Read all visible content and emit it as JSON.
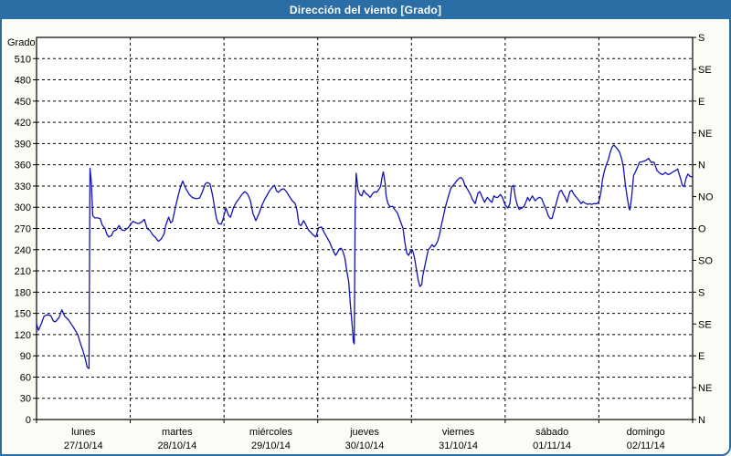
{
  "window": {
    "title": "Dirección del viento [Grado]"
  },
  "colors": {
    "accent": "#2b6ea6",
    "line": "#1212b2",
    "grid": "#000000",
    "plot_background": "#ffffff",
    "page_background": "#fcfcf6",
    "title_text": "#ffffff"
  },
  "chart_data": {
    "type": "line",
    "title": "Dirección del viento [Grado]",
    "ylabel": "Grado",
    "ylim": [
      0,
      540
    ],
    "grid": "dashed",
    "legend": "none",
    "y_left_tick_labels": [
      0,
      30,
      60,
      90,
      120,
      150,
      180,
      210,
      240,
      270,
      300,
      330,
      360,
      390,
      420,
      450,
      480,
      510
    ],
    "y_right_tick_labels": [
      {
        "deg": 0,
        "label": "N"
      },
      {
        "deg": 45,
        "label": "NE"
      },
      {
        "deg": 90,
        "label": "E"
      },
      {
        "deg": 135,
        "label": "SE"
      },
      {
        "deg": 180,
        "label": "S"
      },
      {
        "deg": 225,
        "label": "SO"
      },
      {
        "deg": 270,
        "label": "O"
      },
      {
        "deg": 315,
        "label": "NO"
      },
      {
        "deg": 360,
        "label": "N"
      },
      {
        "deg": 405,
        "label": "NE"
      },
      {
        "deg": 450,
        "label": "E"
      },
      {
        "deg": 495,
        "label": "SE"
      },
      {
        "deg": 540,
        "label": "S"
      }
    ],
    "x_days": [
      {
        "name": "lunes",
        "date": "27/10/14"
      },
      {
        "name": "martes",
        "date": "28/10/14"
      },
      {
        "name": "miércoles",
        "date": "29/10/14"
      },
      {
        "name": "jueves",
        "date": "30/10/14"
      },
      {
        "name": "viernes",
        "date": "31/10/14"
      },
      {
        "name": "sábado",
        "date": "01/11/14"
      },
      {
        "name": "domingo",
        "date": "02/11/14"
      }
    ],
    "series": [
      {
        "name": "Dirección del viento",
        "color": "#1212b2",
        "x_unit": "days_from_start",
        "y_unit": "degrees",
        "points": [
          [
            0,
            135
          ],
          [
            0.02,
            126
          ],
          [
            0.05,
            135
          ],
          [
            0.08,
            146
          ],
          [
            0.11,
            148
          ],
          [
            0.15,
            147
          ],
          [
            0.18,
            139
          ],
          [
            0.2,
            138
          ],
          [
            0.24,
            144
          ],
          [
            0.27,
            155
          ],
          [
            0.3,
            146
          ],
          [
            0.34,
            141
          ],
          [
            0.37,
            135
          ],
          [
            0.4,
            129
          ],
          [
            0.44,
            120
          ],
          [
            0.47,
            107
          ],
          [
            0.5,
            95
          ],
          [
            0.52,
            86
          ],
          [
            0.54,
            74
          ],
          [
            0.56,
            72
          ],
          [
            0.57,
            355
          ],
          [
            0.585,
            335
          ],
          [
            0.6,
            288
          ],
          [
            0.62,
            285
          ],
          [
            0.65,
            285
          ],
          [
            0.68,
            284
          ],
          [
            0.7,
            275
          ],
          [
            0.73,
            270
          ],
          [
            0.75,
            262
          ],
          [
            0.77,
            258
          ],
          [
            0.8,
            260
          ],
          [
            0.82,
            266
          ],
          [
            0.85,
            268
          ],
          [
            0.88,
            274
          ],
          [
            0.91,
            268
          ],
          [
            0.94,
            267
          ],
          [
            0.965,
            270
          ],
          [
            0.985,
            272
          ],
          [
            1.01,
            277
          ],
          [
            1.03,
            280
          ],
          [
            1.06,
            278
          ],
          [
            1.09,
            277
          ],
          [
            1.12,
            279
          ],
          [
            1.15,
            283
          ],
          [
            1.18,
            270
          ],
          [
            1.21,
            267
          ],
          [
            1.24,
            261
          ],
          [
            1.27,
            257
          ],
          [
            1.3,
            252
          ],
          [
            1.33,
            255
          ],
          [
            1.36,
            262
          ],
          [
            1.38,
            275
          ],
          [
            1.41,
            286
          ],
          [
            1.43,
            278
          ],
          [
            1.45,
            280
          ],
          [
            1.48,
            299
          ],
          [
            1.51,
            316
          ],
          [
            1.54,
            331
          ],
          [
            1.56,
            337
          ],
          [
            1.59,
            327
          ],
          [
            1.63,
            318
          ],
          [
            1.66,
            314
          ],
          [
            1.7,
            312
          ],
          [
            1.74,
            313
          ],
          [
            1.77,
            322
          ],
          [
            1.8,
            333
          ],
          [
            1.82,
            335
          ],
          [
            1.85,
            333
          ],
          [
            1.88,
            316
          ],
          [
            1.9,
            299
          ],
          [
            1.92,
            284
          ],
          [
            1.94,
            277
          ],
          [
            1.97,
            276
          ],
          [
            1.99,
            283
          ],
          [
            2.02,
            299
          ],
          [
            2.05,
            288
          ],
          [
            2.07,
            286
          ],
          [
            2.1,
            299
          ],
          [
            2.13,
            307
          ],
          [
            2.16,
            312
          ],
          [
            2.19,
            318
          ],
          [
            2.22,
            322
          ],
          [
            2.25,
            319
          ],
          [
            2.28,
            310
          ],
          [
            2.31,
            291
          ],
          [
            2.34,
            281
          ],
          [
            2.37,
            290
          ],
          [
            2.4,
            301
          ],
          [
            2.43,
            310
          ],
          [
            2.46,
            317
          ],
          [
            2.49,
            324
          ],
          [
            2.52,
            329
          ],
          [
            2.54,
            331
          ],
          [
            2.56,
            323
          ],
          [
            2.58,
            321
          ],
          [
            2.61,
            325
          ],
          [
            2.64,
            326
          ],
          [
            2.67,
            321
          ],
          [
            2.7,
            315
          ],
          [
            2.73,
            309
          ],
          [
            2.76,
            305
          ],
          [
            2.78,
            295
          ],
          [
            2.8,
            276
          ],
          [
            2.82,
            274
          ],
          [
            2.85,
            281
          ],
          [
            2.87,
            276
          ],
          [
            2.9,
            268
          ],
          [
            2.93,
            264
          ],
          [
            2.95,
            261
          ],
          [
            2.98,
            258
          ],
          [
            3.01,
            271
          ],
          [
            3.04,
            272
          ],
          [
            3.07,
            264
          ],
          [
            3.1,
            257
          ],
          [
            3.13,
            250
          ],
          [
            3.16,
            240
          ],
          [
            3.19,
            232
          ],
          [
            3.21,
            236
          ],
          [
            3.23,
            241
          ],
          [
            3.25,
            242
          ],
          [
            3.27,
            237
          ],
          [
            3.29,
            228
          ],
          [
            3.31,
            210
          ],
          [
            3.33,
            195
          ],
          [
            3.35,
            160
          ],
          [
            3.37,
            129
          ],
          [
            3.38,
            110
          ],
          [
            3.39,
            107
          ],
          [
            3.4,
            300
          ],
          [
            3.41,
            348
          ],
          [
            3.43,
            325
          ],
          [
            3.45,
            318
          ],
          [
            3.47,
            316
          ],
          [
            3.49,
            324
          ],
          [
            3.51,
            320
          ],
          [
            3.53,
            318
          ],
          [
            3.56,
            314
          ],
          [
            3.59,
            320
          ],
          [
            3.61,
            322
          ],
          [
            3.63,
            321
          ],
          [
            3.65,
            325
          ],
          [
            3.67,
            329
          ],
          [
            3.69,
            345
          ],
          [
            3.7,
            350
          ],
          [
            3.72,
            333
          ],
          [
            3.73,
            316
          ],
          [
            3.75,
            305
          ],
          [
            3.77,
            301
          ],
          [
            3.8,
            301
          ],
          [
            3.82,
            297
          ],
          [
            3.85,
            292
          ],
          [
            3.88,
            281
          ],
          [
            3.91,
            270
          ],
          [
            3.93,
            250
          ],
          [
            3.95,
            235
          ],
          [
            3.97,
            232
          ],
          [
            3.99,
            238
          ],
          [
            4.01,
            240
          ],
          [
            4.03,
            230
          ],
          [
            4.05,
            215
          ],
          [
            4.07,
            198
          ],
          [
            4.09,
            188
          ],
          [
            4.11,
            191
          ],
          [
            4.12,
            203
          ],
          [
            4.14,
            215
          ],
          [
            4.16,
            228
          ],
          [
            4.18,
            240
          ],
          [
            4.2,
            243
          ],
          [
            4.22,
            247
          ],
          [
            4.24,
            244
          ],
          [
            4.26,
            247
          ],
          [
            4.28,
            252
          ],
          [
            4.3,
            262
          ],
          [
            4.32,
            275
          ],
          [
            4.34,
            287
          ],
          [
            4.36,
            299
          ],
          [
            4.38,
            309
          ],
          [
            4.4,
            318
          ],
          [
            4.42,
            327
          ],
          [
            4.44,
            330
          ],
          [
            4.46,
            333
          ],
          [
            4.48,
            337
          ],
          [
            4.51,
            341
          ],
          [
            4.53,
            342
          ],
          [
            4.55,
            339
          ],
          [
            4.57,
            331
          ],
          [
            4.6,
            325
          ],
          [
            4.63,
            318
          ],
          [
            4.65,
            311
          ],
          [
            4.68,
            305
          ],
          [
            4.71,
            320
          ],
          [
            4.73,
            322
          ],
          [
            4.76,
            313
          ],
          [
            4.78,
            307
          ],
          [
            4.81,
            314
          ],
          [
            4.84,
            309
          ],
          [
            4.86,
            307
          ],
          [
            4.88,
            316
          ],
          [
            4.9,
            314
          ],
          [
            4.92,
            314
          ],
          [
            4.95,
            318
          ],
          [
            4.97,
            314
          ],
          [
            5,
            303
          ],
          [
            5.03,
            299
          ],
          [
            5.05,
            305
          ],
          [
            5.07,
            329
          ],
          [
            5.09,
            331
          ],
          [
            5.11,
            313
          ],
          [
            5.13,
            303
          ],
          [
            5.15,
            297
          ],
          [
            5.18,
            299
          ],
          [
            5.2,
            301
          ],
          [
            5.22,
            307
          ],
          [
            5.24,
            314
          ],
          [
            5.26,
            309
          ],
          [
            5.29,
            316
          ],
          [
            5.32,
            309
          ],
          [
            5.35,
            313
          ],
          [
            5.37,
            314
          ],
          [
            5.39,
            312
          ],
          [
            5.41,
            305
          ],
          [
            5.44,
            296
          ],
          [
            5.46,
            288
          ],
          [
            5.48,
            284
          ],
          [
            5.5,
            284
          ],
          [
            5.52,
            294
          ],
          [
            5.54,
            303
          ],
          [
            5.56,
            313
          ],
          [
            5.58,
            322
          ],
          [
            5.6,
            324
          ],
          [
            5.62,
            318
          ],
          [
            5.64,
            314
          ],
          [
            5.66,
            307
          ],
          [
            5.69,
            322
          ],
          [
            5.71,
            324
          ],
          [
            5.73,
            319
          ],
          [
            5.76,
            314
          ],
          [
            5.79,
            309
          ],
          [
            5.81,
            305
          ],
          [
            5.83,
            308
          ],
          [
            5.85,
            306
          ],
          [
            5.88,
            304
          ],
          [
            5.9,
            305
          ],
          [
            5.92,
            304
          ],
          [
            5.95,
            305
          ],
          [
            5.98,
            305
          ],
          [
            6,
            308
          ],
          [
            6.02,
            320
          ],
          [
            6.04,
            340
          ],
          [
            6.06,
            352
          ],
          [
            6.08,
            360
          ],
          [
            6.1,
            367
          ],
          [
            6.12,
            377
          ],
          [
            6.14,
            385
          ],
          [
            6.16,
            388
          ],
          [
            6.18,
            385
          ],
          [
            6.2,
            382
          ],
          [
            6.22,
            378
          ],
          [
            6.24,
            370
          ],
          [
            6.26,
            358
          ],
          [
            6.28,
            335
          ],
          [
            6.3,
            316
          ],
          [
            6.32,
            299
          ],
          [
            6.33,
            296
          ],
          [
            6.35,
            315
          ],
          [
            6.37,
            345
          ],
          [
            6.39,
            350
          ],
          [
            6.41,
            356
          ],
          [
            6.43,
            363
          ],
          [
            6.45,
            364
          ],
          [
            6.48,
            365
          ],
          [
            6.5,
            366
          ],
          [
            6.53,
            369
          ],
          [
            6.56,
            363
          ],
          [
            6.58,
            364
          ],
          [
            6.59,
            363
          ],
          [
            6.62,
            352
          ],
          [
            6.65,
            348
          ],
          [
            6.68,
            346
          ],
          [
            6.71,
            349
          ],
          [
            6.74,
            346
          ],
          [
            6.77,
            348
          ],
          [
            6.79,
            350
          ],
          [
            6.82,
            352
          ],
          [
            6.84,
            354
          ],
          [
            6.87,
            341
          ],
          [
            6.89,
            331
          ],
          [
            6.91,
            329
          ],
          [
            6.93,
            341
          ],
          [
            6.95,
            347
          ],
          [
            6.97,
            344
          ],
          [
            6.99,
            343
          ]
        ]
      }
    ]
  }
}
